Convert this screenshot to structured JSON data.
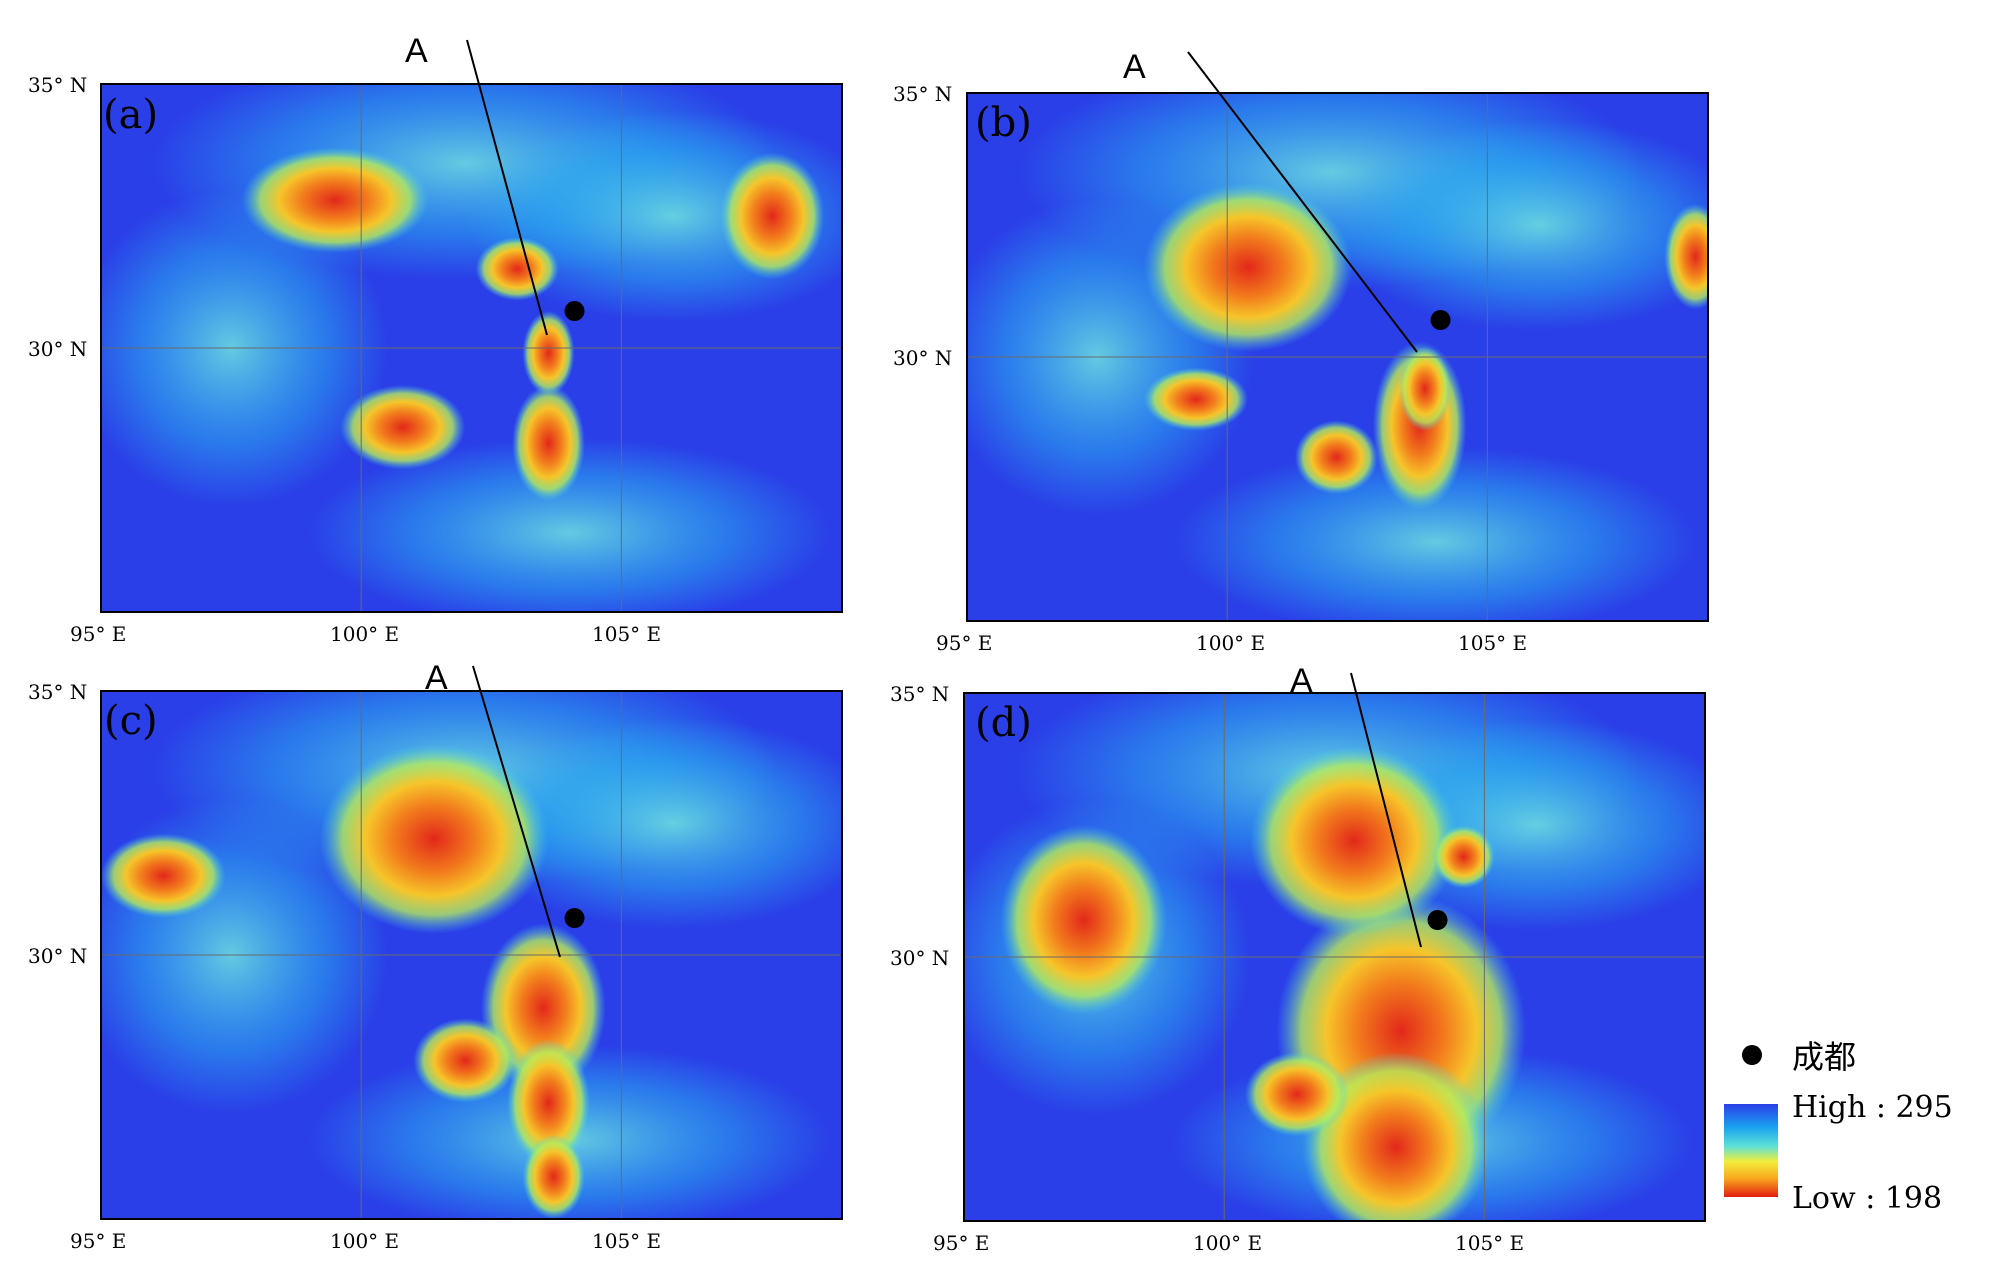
{
  "panels": [
    {
      "id": "a",
      "label": "(a)",
      "lat_top": "35° N",
      "lat_mid": "30° N",
      "lon_labels": [
        "95° E",
        "100° E",
        "105° E"
      ],
      "line_label": "A",
      "cores": [
        [
          103.6,
          28.2,
          0.35,
          0.55
        ],
        [
          103.6,
          29.9,
          0.25,
          0.4
        ],
        [
          100.8,
          28.5,
          0.6,
          0.4
        ],
        [
          99.5,
          32.8,
          0.9,
          0.5
        ],
        [
          103.0,
          31.5,
          0.4,
          0.3
        ],
        [
          107.9,
          32.5,
          0.5,
          0.6
        ]
      ]
    },
    {
      "id": "b",
      "label": "(b)",
      "lat_top": "35° N",
      "lat_mid": "30° N",
      "lon_labels": [
        "95° E",
        "100° E",
        "105° E"
      ],
      "line_label": "A",
      "cores": [
        [
          103.7,
          28.7,
          0.45,
          0.8
        ],
        [
          102.1,
          28.1,
          0.4,
          0.35
        ],
        [
          100.4,
          31.7,
          1.0,
          0.8
        ],
        [
          103.8,
          29.4,
          0.25,
          0.4
        ],
        [
          99.4,
          29.2,
          0.5,
          0.3
        ],
        [
          109,
          31.9,
          0.3,
          0.5
        ]
      ]
    },
    {
      "id": "c",
      "label": "(c)",
      "lat_top": "35° N",
      "lat_mid": "30° N",
      "lon_labels": [
        "95° E",
        "100° E",
        "105° E"
      ],
      "line_label": "A",
      "cores": [
        [
          103.5,
          29.0,
          0.6,
          0.8
        ],
        [
          103.6,
          27.2,
          0.4,
          0.6
        ],
        [
          102.0,
          28.0,
          0.5,
          0.4
        ],
        [
          101.4,
          32.2,
          1.1,
          0.9
        ],
        [
          103.7,
          25.8,
          0.3,
          0.4
        ],
        [
          96.2,
          31.5,
          0.6,
          0.4
        ]
      ]
    },
    {
      "id": "d",
      "label": "(d)",
      "lat_top": "35° N",
      "lat_mid": "30° N",
      "lon_labels": [
        "95° E",
        "100° E",
        "105° E"
      ],
      "line_label": "A",
      "cores": [
        [
          103.4,
          28.6,
          1.2,
          1.3
        ],
        [
          103.3,
          26.4,
          0.9,
          0.9
        ],
        [
          102.5,
          32.2,
          1.0,
          0.9
        ],
        [
          97.3,
          30.7,
          0.8,
          0.9
        ],
        [
          101.4,
          27.4,
          0.5,
          0.4
        ],
        [
          104.6,
          31.9,
          0.3,
          0.3
        ]
      ]
    }
  ],
  "city_marker": {
    "lon": 104.1,
    "lat": 30.7,
    "name": "成都"
  },
  "colorbar": {
    "high_label": "High : 295",
    "low_label": "Low : 198"
  },
  "colors": {
    "cold": "#e51c10",
    "warm": "#2a3fe8"
  }
}
